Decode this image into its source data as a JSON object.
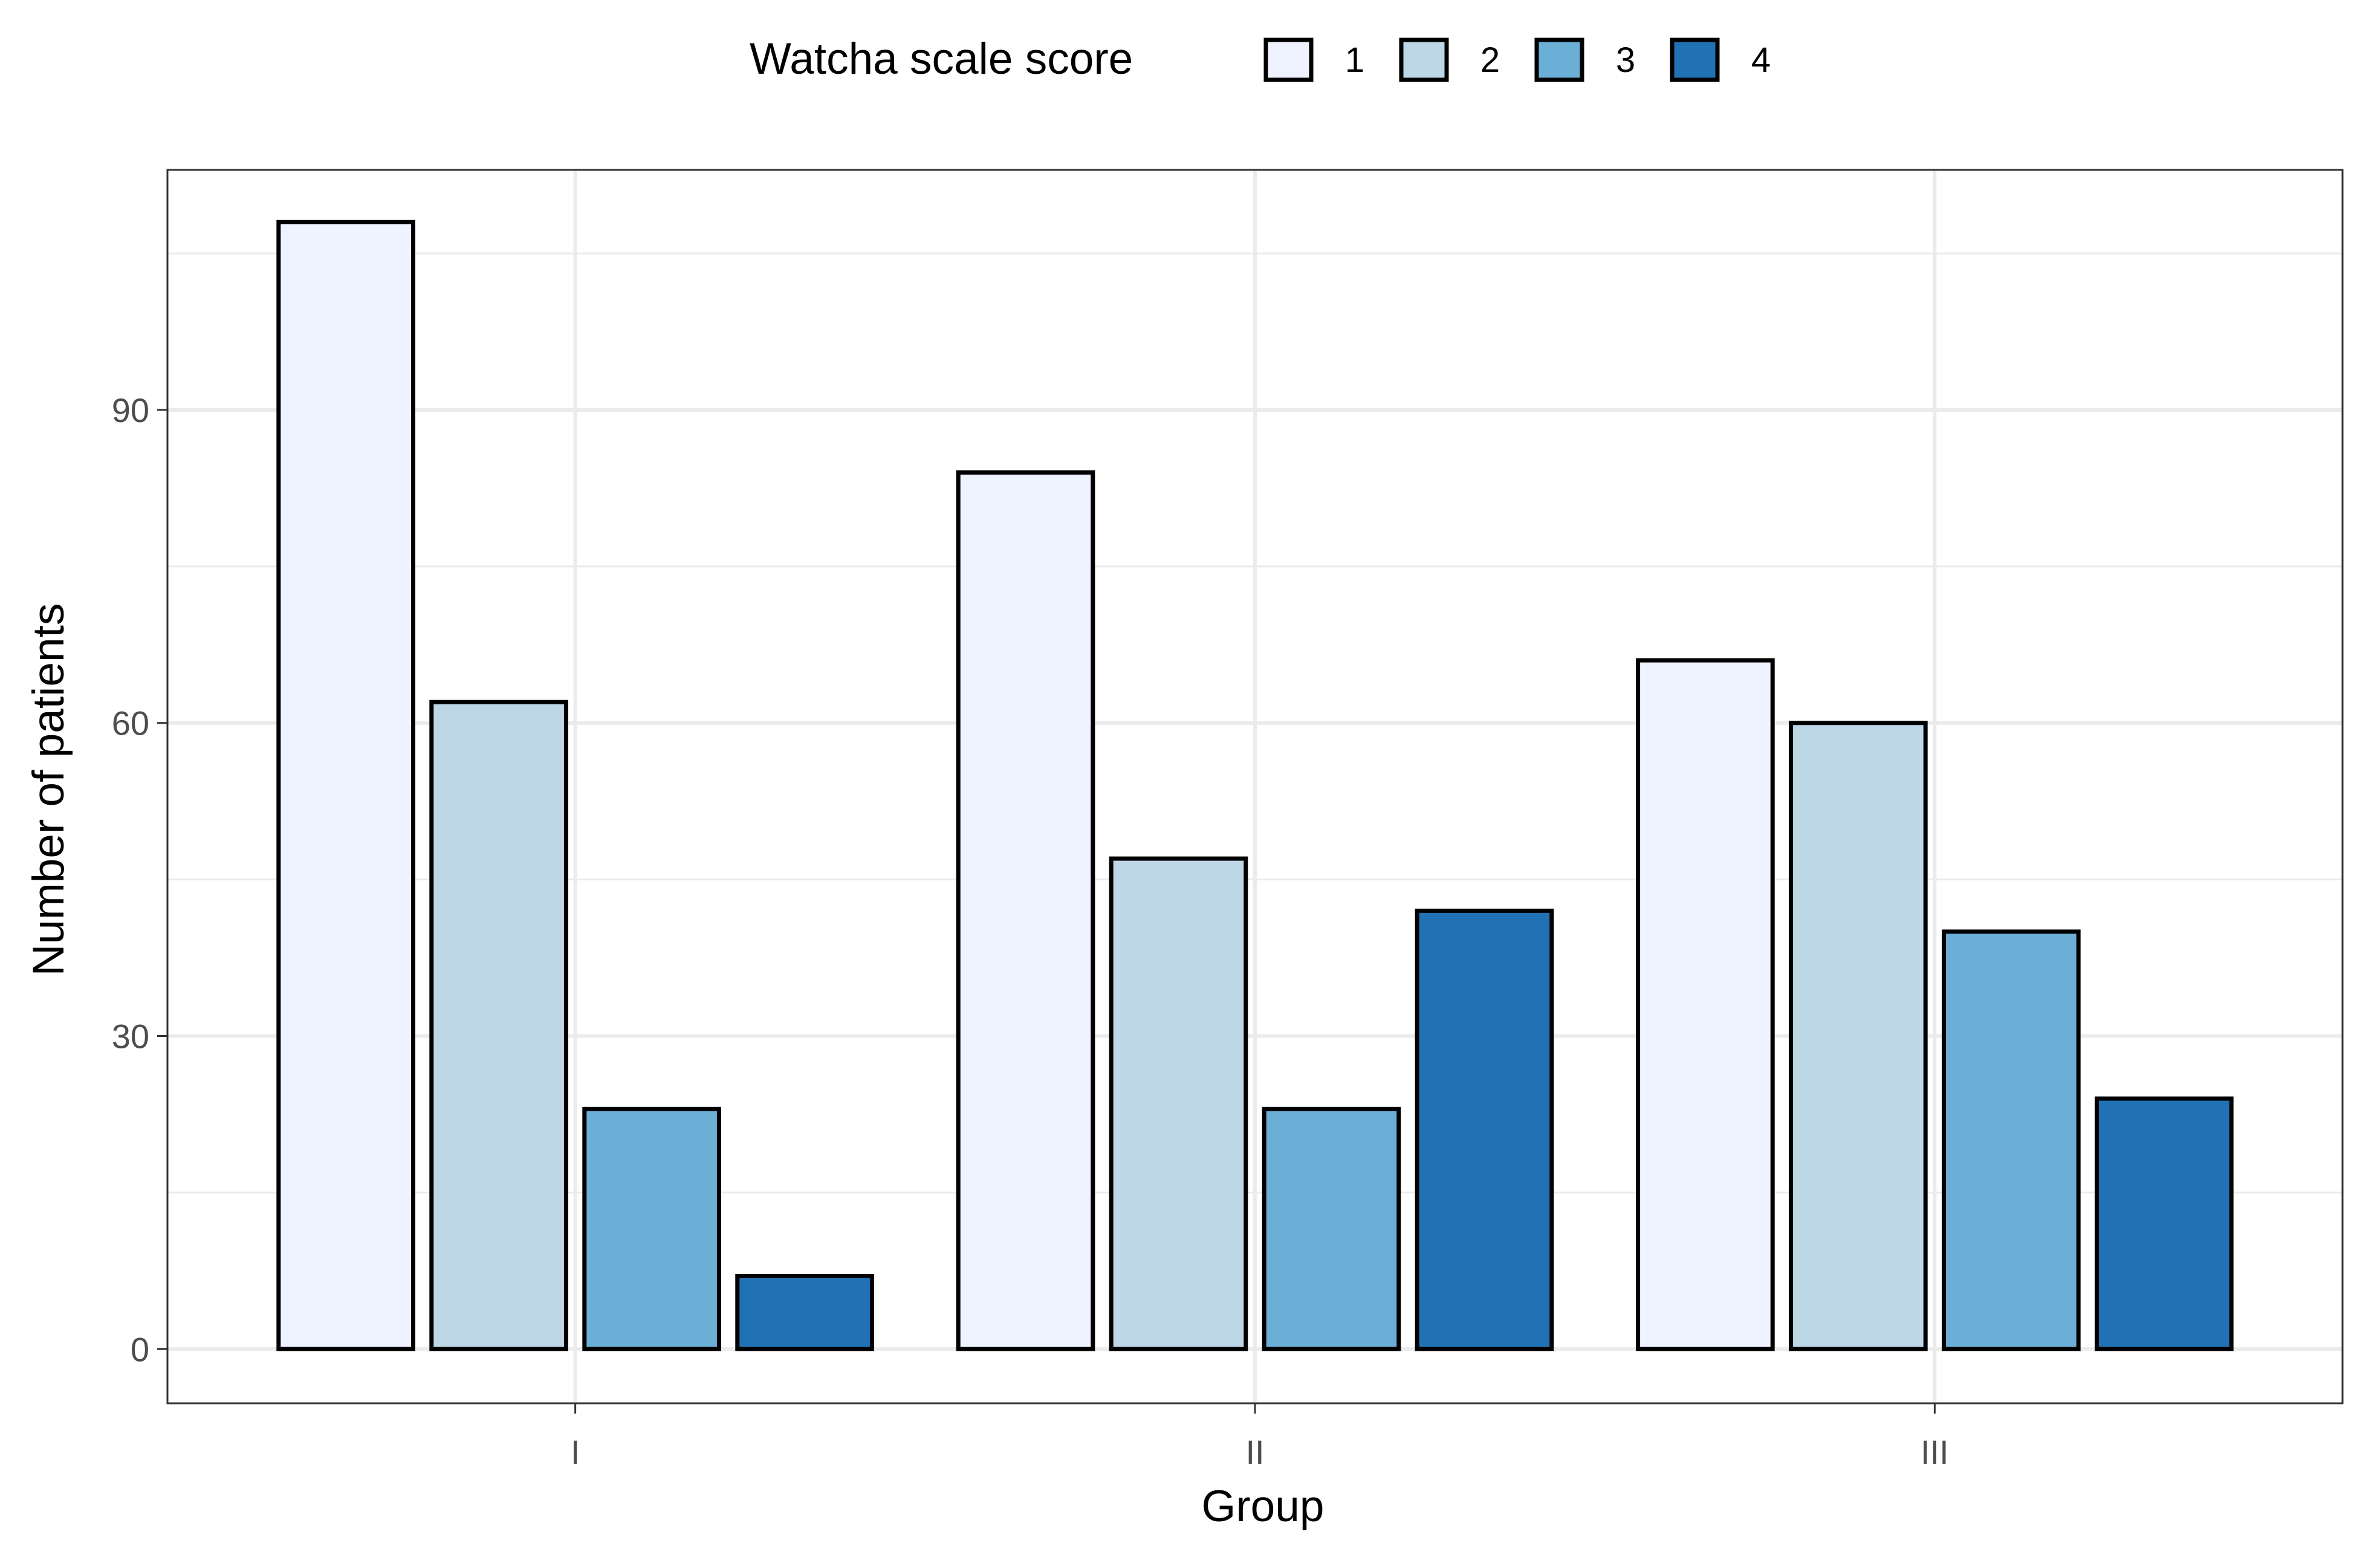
{
  "chart_data": {
    "type": "bar",
    "title": "",
    "xlabel": "Group",
    "ylabel": "Number of patients",
    "categories": [
      "I",
      "II",
      "III"
    ],
    "legend_title": "Watcha scale score",
    "legend_position": "top",
    "grid": true,
    "ylim": [
      -5.2,
      113
    ],
    "yticks": [
      0,
      30,
      60,
      90
    ],
    "ytick_labels": [
      "0",
      "30",
      "60",
      "90"
    ],
    "series": [
      {
        "name": "1",
        "color": "#eff3ff",
        "values": [
          108,
          84,
          66
        ]
      },
      {
        "name": "2",
        "color": "#bdd7e7",
        "values": [
          62,
          47,
          60
        ]
      },
      {
        "name": "3",
        "color": "#6baed6",
        "values": [
          23,
          23,
          40
        ]
      },
      {
        "name": "4",
        "color": "#2171b5",
        "values": [
          7,
          42,
          24
        ]
      }
    ]
  }
}
